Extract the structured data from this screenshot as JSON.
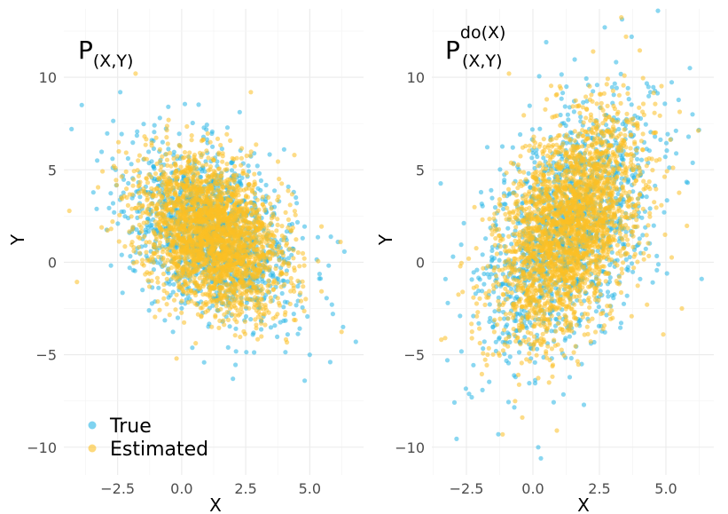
{
  "colors": {
    "true": "#29b6e6",
    "estimated": "#fbbf24"
  },
  "legend": {
    "items": [
      {
        "label": "True",
        "color": "#29b6e6"
      },
      {
        "label": "Estimated",
        "color": "#fbbf24"
      }
    ],
    "position": "bottom-left"
  },
  "chart_data": [
    {
      "type": "scatter",
      "title_main": "P",
      "title_sub": "(X,Y)",
      "title_sup": "",
      "xlabel": "X",
      "ylabel": "Y",
      "xlim": [
        -4.6,
        7.1
      ],
      "ylim": [
        -11.5,
        13.7
      ],
      "xticks": [
        -2.5,
        0.0,
        2.5,
        5.0
      ],
      "xtick_labels": [
        "−2.5",
        "0.0",
        "2.5",
        "5.0"
      ],
      "yticks": [
        -10,
        -5,
        0,
        5,
        10
      ],
      "ytick_labels": [
        "−10",
        "−5",
        "0",
        "5",
        "10"
      ],
      "grid": true,
      "series": [
        {
          "name": "True",
          "color": "#29b6e6",
          "n": 1400,
          "distribution": {
            "mean": [
              1.2,
              1.5
            ],
            "sd": [
              1.6,
              2.3
            ],
            "corr": -0.35
          },
          "outliers": [
            [
              -4.3,
              7.2
            ],
            [
              -3.9,
              8.5
            ],
            [
              -2.4,
              9.2
            ],
            [
              6.3,
              -3.5
            ],
            [
              6.8,
              -4.3
            ],
            [
              5.8,
              -5.4
            ],
            [
              5.0,
              -5.0
            ],
            [
              4.8,
              -6.4
            ],
            [
              6.1,
              1.1
            ],
            [
              4.0,
              6.1
            ],
            [
              -2.7,
              5.6
            ],
            [
              -3.3,
              5.5
            ],
            [
              2.0,
              -6.3
            ]
          ]
        },
        {
          "name": "Estimated",
          "color": "#fbbf24",
          "n": 2600,
          "distribution": {
            "mean": [
              1.2,
              1.5
            ],
            "sd": [
              1.35,
              2.05
            ],
            "corr": -0.35
          },
          "outliers": [
            [
              -1.8,
              10.2
            ],
            [
              2.7,
              9.2
            ],
            [
              6.2,
              1.1
            ],
            [
              4.4,
              5.8
            ],
            [
              -0.2,
              -5.2
            ],
            [
              3.5,
              2.9
            ],
            [
              -2.7,
              2.2
            ]
          ]
        }
      ]
    },
    {
      "type": "scatter",
      "title_main": "P",
      "title_sub": "(X,Y)",
      "title_sup": "do(X)",
      "xlabel": "X",
      "ylabel": "Y",
      "xlim": [
        -3.8,
        6.8
      ],
      "ylim": [
        -11.5,
        13.7
      ],
      "xticks": [
        -2.5,
        0.0,
        2.5,
        5.0
      ],
      "xtick_labels": [
        "−2.5",
        "0.0",
        "2.5",
        "5.0"
      ],
      "yticks": [
        -10,
        -5,
        0,
        5,
        10
      ],
      "ytick_labels": [
        "−10",
        "−5",
        "0",
        "5",
        "10"
      ],
      "grid": true,
      "series": [
        {
          "name": "True",
          "color": "#29b6e6",
          "n": 1400,
          "distribution": {
            "mean": [
              1.3,
              1.8
            ],
            "sd": [
              1.6,
              3.4
            ],
            "corr": 0.48
          },
          "outliers": [
            [
              4.7,
              13.6
            ],
            [
              2.7,
              12.7
            ],
            [
              0.5,
              11.9
            ],
            [
              0.2,
              -10.0
            ],
            [
              0.3,
              -10.6
            ],
            [
              -3.2,
              -2.2
            ],
            [
              5.9,
              10.5
            ],
            [
              -1.3,
              -9.3
            ],
            [
              6.0,
              8.0
            ],
            [
              -2.3,
              -7.3
            ]
          ]
        },
        {
          "name": "Estimated",
          "color": "#fbbf24",
          "n": 2600,
          "distribution": {
            "mean": [
              1.3,
              1.8
            ],
            "sd": [
              1.35,
              3.0
            ],
            "corr": 0.48
          },
          "outliers": [
            [
              -0.9,
              10.2
            ],
            [
              3.5,
              12.2
            ],
            [
              0.9,
              -9.1
            ],
            [
              4.9,
              -3.9
            ],
            [
              -3.3,
              -4.1
            ],
            [
              5.6,
              -2.5
            ]
          ]
        }
      ]
    }
  ]
}
